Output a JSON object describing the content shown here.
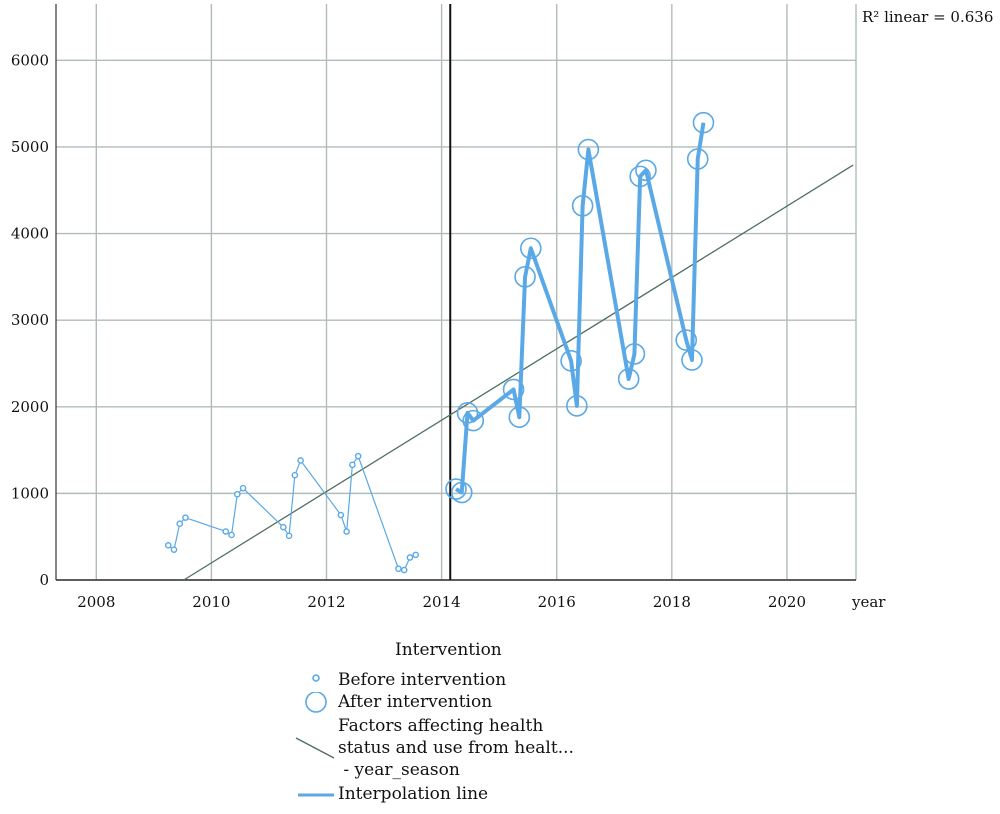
{
  "chart_data": {
    "type": "scatter",
    "xlabel": "year",
    "ylabel": "",
    "xlim": [
      2007.3,
      2021.2
    ],
    "ylim": [
      0,
      6650
    ],
    "x_ticks": [
      2008,
      2010,
      2012,
      2014,
      2016,
      2018,
      2020
    ],
    "y_ticks": [
      0,
      1000,
      2000,
      3000,
      4000,
      5000,
      6000
    ],
    "grid": true,
    "intervention_x": 2014.15,
    "annotation": "R² linear = 0.636",
    "legend": {
      "title": "Intervention",
      "placement": "bottom",
      "items": [
        "Before intervention",
        "After intervention",
        "Factors affecting health status and use from healt... - year_season",
        "Interpolation line"
      ],
      "fit_label_lines": [
        "Factors affecting health",
        "status and use from healt...",
        " - year_season"
      ]
    },
    "colors": {
      "points": "#5aa9e6",
      "fit": "#4f6f5f",
      "grid": "#b0bcb8",
      "intervention": "#111111"
    },
    "series": [
      {
        "name": "Before intervention",
        "marker": "small-circle",
        "points": [
          [
            2009.25,
            400
          ],
          [
            2009.35,
            350
          ],
          [
            2009.45,
            650
          ],
          [
            2009.55,
            720
          ],
          [
            2010.25,
            560
          ],
          [
            2010.35,
            520
          ],
          [
            2010.45,
            990
          ],
          [
            2010.55,
            1060
          ],
          [
            2011.25,
            610
          ],
          [
            2011.35,
            510
          ],
          [
            2011.45,
            1210
          ],
          [
            2011.55,
            1380
          ],
          [
            2012.25,
            750
          ],
          [
            2012.35,
            560
          ],
          [
            2012.45,
            1330
          ],
          [
            2012.55,
            1430
          ],
          [
            2013.25,
            130
          ],
          [
            2013.35,
            115
          ],
          [
            2013.45,
            260
          ],
          [
            2013.55,
            290
          ]
        ]
      },
      {
        "name": "After intervention",
        "marker": "large-circle",
        "points": [
          [
            2014.25,
            1050
          ],
          [
            2014.35,
            1010
          ],
          [
            2014.45,
            1930
          ],
          [
            2014.55,
            1840
          ],
          [
            2015.25,
            2200
          ],
          [
            2015.35,
            1880
          ],
          [
            2015.45,
            3500
          ],
          [
            2015.55,
            3830
          ],
          [
            2016.25,
            2530
          ],
          [
            2016.35,
            2010
          ],
          [
            2016.45,
            4320
          ],
          [
            2016.55,
            4970
          ],
          [
            2017.25,
            2320
          ],
          [
            2017.35,
            2610
          ],
          [
            2017.45,
            4660
          ],
          [
            2017.55,
            4730
          ],
          [
            2018.25,
            2770
          ],
          [
            2018.35,
            2540
          ],
          [
            2018.45,
            4860
          ],
          [
            2018.55,
            5280
          ]
        ]
      }
    ],
    "fit_line": {
      "x": [
        2009.52,
        2021.15
      ],
      "y": [
        0,
        4790
      ]
    }
  }
}
